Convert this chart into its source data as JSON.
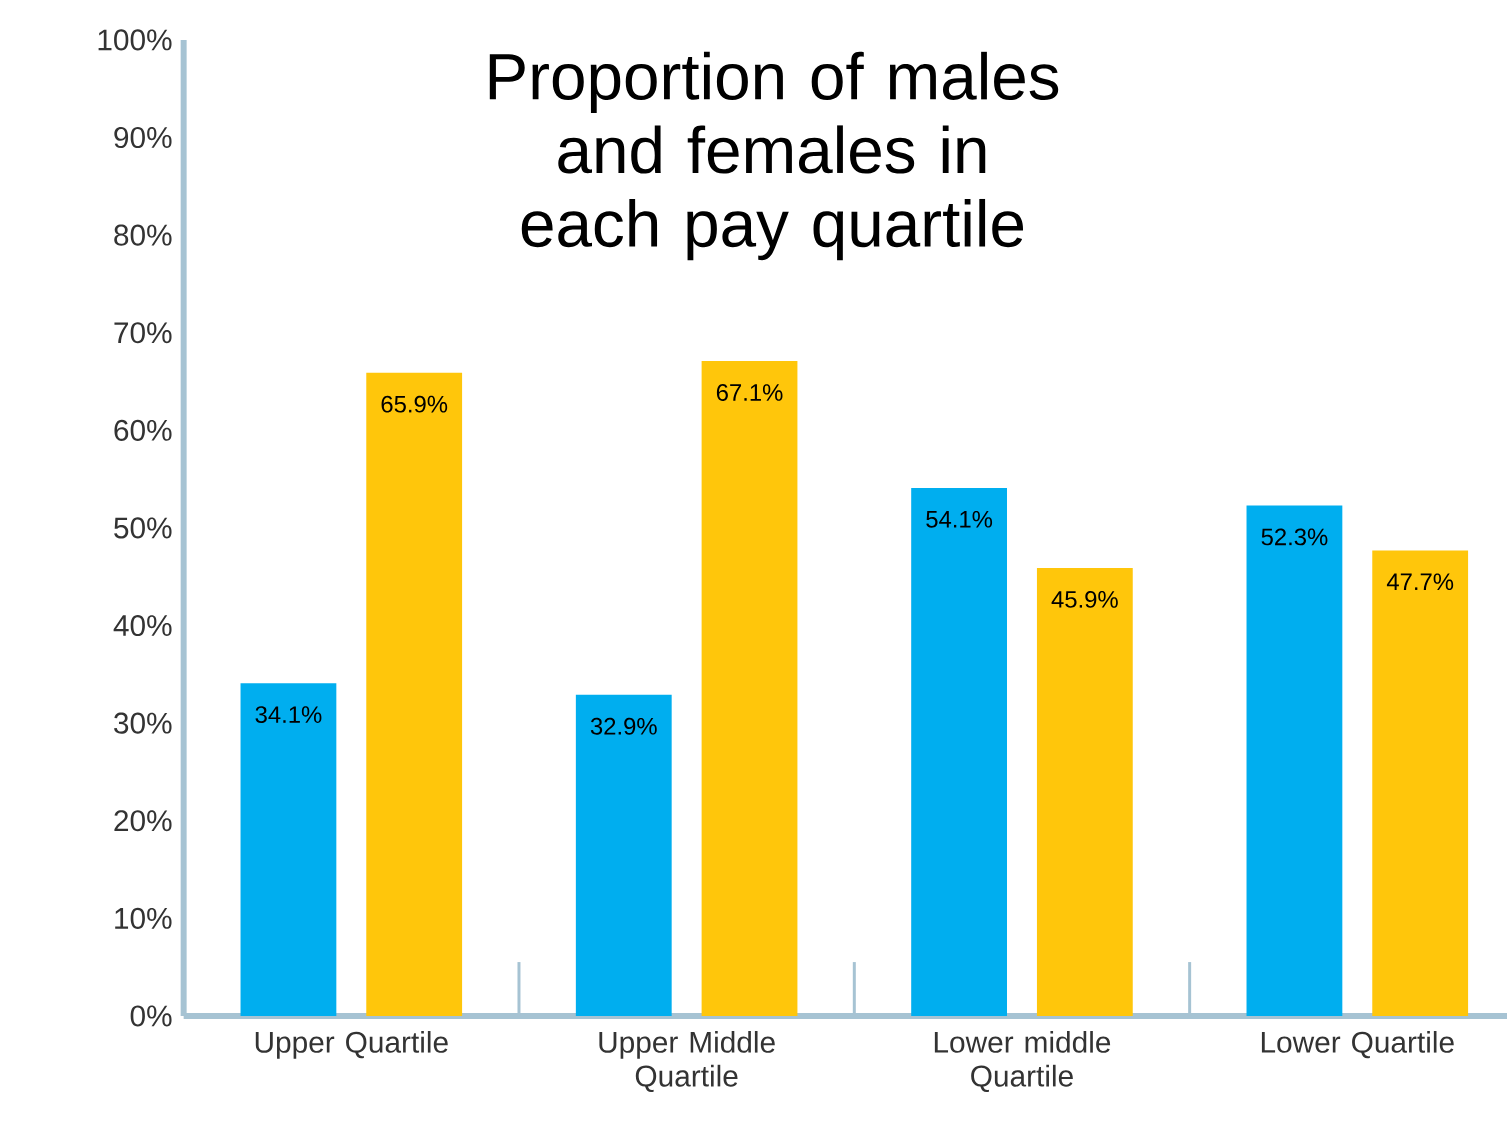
{
  "chart_data": {
    "type": "bar",
    "title": "Proportion of males and females in each pay quartile",
    "categories": [
      "Upper Quartile",
      "Upper Middle Quartile",
      "Lower middle Quartile",
      "Lower Quartile"
    ],
    "series": [
      {
        "color": "#00aeef",
        "values": [
          34.1,
          32.9,
          54.1,
          52.3
        ],
        "value_labels": [
          "34.1%",
          "32.9%",
          "54.1%",
          "52.3%"
        ]
      },
      {
        "color": "#ffc60b",
        "values": [
          65.9,
          67.1,
          45.9,
          47.7
        ],
        "value_labels": [
          "65.9%",
          "67.1%",
          "45.9%",
          "47.7%"
        ]
      }
    ],
    "ylim": [
      0,
      100
    ],
    "yticks": [
      {
        "value": 0,
        "label": "0%"
      },
      {
        "value": 10,
        "label": "10%"
      },
      {
        "value": 20,
        "label": "20%"
      },
      {
        "value": 30,
        "label": "30%"
      },
      {
        "value": 40,
        "label": "40%"
      },
      {
        "value": 50,
        "label": "50%"
      },
      {
        "value": 60,
        "label": "60%"
      },
      {
        "value": 70,
        "label": "70%"
      },
      {
        "value": 80,
        "label": "80%"
      },
      {
        "value": 90,
        "label": "90%"
      },
      {
        "value": 100,
        "label": "100%"
      }
    ]
  }
}
